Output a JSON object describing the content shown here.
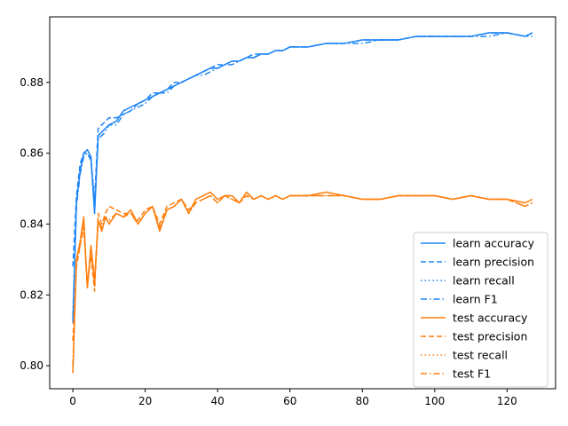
{
  "chart_data": {
    "type": "line",
    "title": "",
    "xlabel": "",
    "ylabel": "",
    "xlim": [
      -6.4,
      133.4
    ],
    "ylim": [
      0.7935,
      0.8985
    ],
    "x_ticks": [
      0,
      20,
      40,
      60,
      80,
      100,
      120
    ],
    "y_ticks": [
      0.8,
      0.82,
      0.84,
      0.86,
      0.88
    ],
    "x_tick_labels": [
      "0",
      "20",
      "40",
      "60",
      "80",
      "100",
      "120"
    ],
    "y_tick_labels": [
      "0.80",
      "0.82",
      "0.84",
      "0.86",
      "0.88"
    ],
    "grid": false,
    "legend_position": "lower-right",
    "colors": {
      "learn": "#1f86f5",
      "test": "#ff7f0e"
    },
    "x": [
      0,
      1,
      2,
      3,
      4,
      5,
      6,
      7,
      8,
      9,
      10,
      12,
      14,
      16,
      18,
      20,
      22,
      24,
      26,
      28,
      30,
      32,
      34,
      36,
      38,
      40,
      42,
      44,
      46,
      48,
      50,
      52,
      54,
      56,
      58,
      60,
      65,
      70,
      75,
      80,
      85,
      90,
      95,
      100,
      105,
      110,
      115,
      120,
      125,
      127
    ],
    "series": [
      {
        "name": "learn accuracy",
        "linestyle": "solid",
        "values": [
          0.812,
          0.846,
          0.855,
          0.86,
          0.861,
          0.859,
          0.843,
          0.865,
          0.866,
          0.867,
          0.868,
          0.869,
          0.872,
          0.873,
          0.874,
          0.875,
          0.876,
          0.877,
          0.878,
          0.879,
          0.88,
          0.881,
          0.882,
          0.883,
          0.884,
          0.884,
          0.885,
          0.886,
          0.886,
          0.887,
          0.887,
          0.888,
          0.888,
          0.889,
          0.889,
          0.89,
          0.89,
          0.891,
          0.891,
          0.892,
          0.892,
          0.892,
          0.893,
          0.893,
          0.893,
          0.893,
          0.894,
          0.894,
          0.893,
          0.894
        ]
      },
      {
        "name": "learn precision",
        "linestyle": "dashed",
        "values": [
          0.828,
          0.848,
          0.857,
          0.86,
          0.86,
          0.858,
          0.847,
          0.867,
          0.868,
          0.869,
          0.87,
          0.87,
          0.871,
          0.872,
          0.874,
          0.875,
          0.877,
          0.877,
          0.878,
          0.88,
          0.88,
          0.881,
          0.882,
          0.883,
          0.884,
          0.885,
          0.885,
          0.886,
          0.886,
          0.887,
          0.888,
          0.888,
          0.888,
          0.889,
          0.889,
          0.89,
          0.89,
          0.891,
          0.891,
          0.892,
          0.892,
          0.892,
          0.893,
          0.893,
          0.893,
          0.893,
          0.894,
          0.894,
          0.893,
          0.894
        ]
      },
      {
        "name": "learn recall",
        "linestyle": "dotted",
        "values": [
          0.813,
          0.846,
          0.855,
          0.86,
          0.861,
          0.859,
          0.843,
          0.865,
          0.866,
          0.867,
          0.868,
          0.869,
          0.872,
          0.873,
          0.874,
          0.875,
          0.876,
          0.877,
          0.878,
          0.879,
          0.88,
          0.881,
          0.882,
          0.883,
          0.884,
          0.884,
          0.885,
          0.886,
          0.886,
          0.887,
          0.887,
          0.888,
          0.888,
          0.889,
          0.889,
          0.89,
          0.89,
          0.891,
          0.891,
          0.892,
          0.892,
          0.892,
          0.893,
          0.893,
          0.893,
          0.893,
          0.894,
          0.894,
          0.893,
          0.894
        ]
      },
      {
        "name": "learn F1",
        "linestyle": "dashdot",
        "values": [
          0.814,
          0.845,
          0.854,
          0.859,
          0.86,
          0.858,
          0.844,
          0.864,
          0.865,
          0.866,
          0.868,
          0.868,
          0.871,
          0.872,
          0.873,
          0.874,
          0.876,
          0.877,
          0.877,
          0.879,
          0.88,
          0.881,
          0.882,
          0.882,
          0.883,
          0.884,
          0.885,
          0.885,
          0.886,
          0.887,
          0.887,
          0.888,
          0.888,
          0.889,
          0.889,
          0.89,
          0.89,
          0.891,
          0.891,
          0.891,
          0.892,
          0.892,
          0.893,
          0.893,
          0.893,
          0.893,
          0.893,
          0.894,
          0.893,
          0.893
        ]
      },
      {
        "name": "test accuracy",
        "linestyle": "solid",
        "values": [
          0.798,
          0.83,
          0.835,
          0.842,
          0.822,
          0.834,
          0.824,
          0.841,
          0.838,
          0.842,
          0.84,
          0.843,
          0.842,
          0.844,
          0.84,
          0.843,
          0.845,
          0.838,
          0.844,
          0.845,
          0.847,
          0.843,
          0.847,
          0.848,
          0.849,
          0.847,
          0.848,
          0.848,
          0.846,
          0.849,
          0.847,
          0.848,
          0.847,
          0.848,
          0.847,
          0.848,
          0.848,
          0.849,
          0.848,
          0.847,
          0.847,
          0.848,
          0.848,
          0.848,
          0.847,
          0.848,
          0.847,
          0.847,
          0.846,
          0.847
        ]
      },
      {
        "name": "test precision",
        "linestyle": "dashed",
        "values": [
          0.807,
          0.828,
          0.834,
          0.839,
          0.823,
          0.831,
          0.821,
          0.843,
          0.84,
          0.843,
          0.845,
          0.844,
          0.843,
          0.843,
          0.841,
          0.844,
          0.845,
          0.84,
          0.845,
          0.846,
          0.847,
          0.844,
          0.846,
          0.847,
          0.848,
          0.846,
          0.848,
          0.847,
          0.846,
          0.848,
          0.847,
          0.848,
          0.847,
          0.848,
          0.847,
          0.848,
          0.848,
          0.848,
          0.848,
          0.847,
          0.847,
          0.848,
          0.848,
          0.848,
          0.847,
          0.848,
          0.847,
          0.847,
          0.845,
          0.846
        ]
      },
      {
        "name": "test recall",
        "linestyle": "dotted",
        "values": [
          0.798,
          0.83,
          0.835,
          0.842,
          0.822,
          0.834,
          0.824,
          0.841,
          0.838,
          0.842,
          0.84,
          0.843,
          0.842,
          0.844,
          0.84,
          0.843,
          0.845,
          0.838,
          0.844,
          0.845,
          0.847,
          0.843,
          0.847,
          0.848,
          0.849,
          0.847,
          0.848,
          0.848,
          0.846,
          0.849,
          0.847,
          0.848,
          0.847,
          0.848,
          0.847,
          0.848,
          0.848,
          0.849,
          0.848,
          0.847,
          0.847,
          0.848,
          0.848,
          0.848,
          0.847,
          0.848,
          0.847,
          0.847,
          0.846,
          0.847
        ]
      },
      {
        "name": "test F1",
        "linestyle": "dashdot",
        "values": [
          0.8,
          0.829,
          0.834,
          0.84,
          0.822,
          0.833,
          0.823,
          0.841,
          0.839,
          0.842,
          0.841,
          0.843,
          0.842,
          0.843,
          0.84,
          0.843,
          0.845,
          0.839,
          0.844,
          0.845,
          0.847,
          0.843,
          0.846,
          0.847,
          0.848,
          0.846,
          0.848,
          0.847,
          0.846,
          0.848,
          0.847,
          0.848,
          0.847,
          0.848,
          0.847,
          0.848,
          0.848,
          0.848,
          0.848,
          0.847,
          0.847,
          0.848,
          0.848,
          0.848,
          0.847,
          0.848,
          0.847,
          0.847,
          0.845,
          0.846
        ]
      }
    ]
  }
}
